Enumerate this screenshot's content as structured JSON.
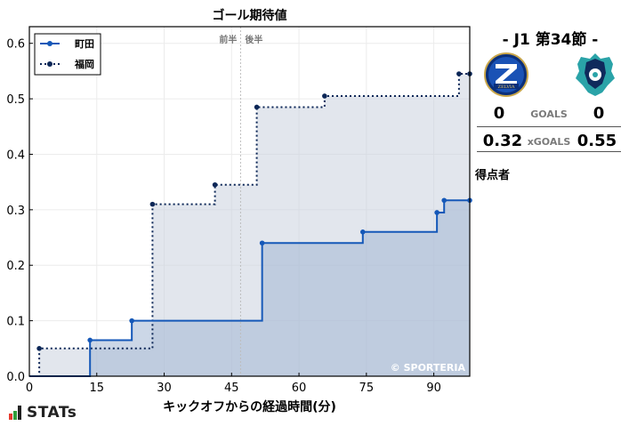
{
  "chart_data": {
    "type": "line",
    "subtype": "step-area",
    "title": "ゴール期待値",
    "xlabel": "キックオフからの経過時間(分)",
    "ylabel": "",
    "xlim": [
      0,
      98
    ],
    "ylim": [
      0,
      0.63
    ],
    "x_ticks": [
      0,
      15,
      30,
      45,
      60,
      75,
      90
    ],
    "x_tick_labels": [
      "0",
      "15",
      "30",
      "45",
      "60",
      "75",
      "90"
    ],
    "y_ticks": [
      0.0,
      0.1,
      0.2,
      0.3,
      0.4,
      0.5,
      0.6
    ],
    "y_tick_labels": [
      "0.0",
      "0.1",
      "0.2",
      "0.3",
      "0.4",
      "0.5",
      "0.6"
    ],
    "grid": true,
    "legend_position": "upper left",
    "annotations": {
      "half_divider_x": 47,
      "first_half_label": "前半",
      "second_half_label": "後半",
      "watermark": "© SPORTERIA"
    },
    "series": [
      {
        "name": "町田",
        "style": "solid",
        "color": "#1558b8",
        "fill": "#a3b6d4",
        "points": [
          [
            0,
            0
          ],
          [
            13.5,
            0.065
          ],
          [
            22.8,
            0.1
          ],
          [
            51.8,
            0.24
          ],
          [
            74.2,
            0.26
          ],
          [
            90.7,
            0.295
          ],
          [
            92.3,
            0.317
          ],
          [
            98,
            0.317
          ]
        ]
      },
      {
        "name": "福岡",
        "style": "dotted",
        "color": "#0c2757",
        "fill": "#cbd2de",
        "points": [
          [
            0,
            0
          ],
          [
            2.2,
            0.05
          ],
          [
            27.4,
            0.31
          ],
          [
            41.3,
            0.345
          ],
          [
            50.6,
            0.485
          ],
          [
            65.7,
            0.505
          ],
          [
            95.6,
            0.545
          ],
          [
            98,
            0.545
          ]
        ]
      }
    ]
  },
  "side_panel": {
    "round_label": "- J1 第34節 -",
    "home_team": "町田",
    "away_team": "福岡",
    "home_crest": "zelvia-crest-icon",
    "away_crest": "avispa-crest-icon",
    "goals": {
      "home": "0",
      "label": "GOALS",
      "away": "0"
    },
    "xgoals": {
      "home": "0.32",
      "label": "xGOALS",
      "away": "0.55"
    },
    "scorers_label": "得点者"
  },
  "branding": {
    "logo_text": "STATs"
  }
}
